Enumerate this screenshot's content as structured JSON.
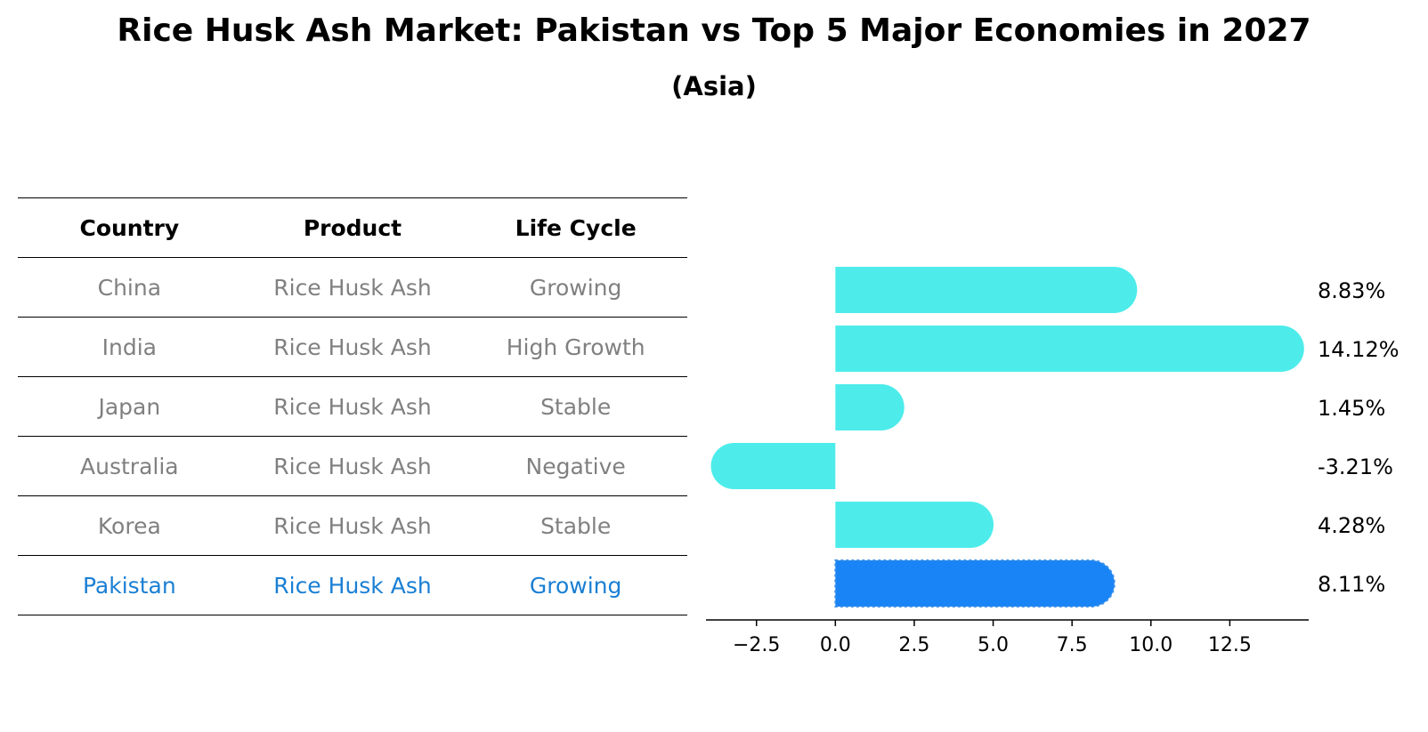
{
  "title": "Rice Husk Ash Market: Pakistan vs Top 5 Major Economies in 2027",
  "subtitle": "(Asia)",
  "table": {
    "headers": [
      "Country",
      "Product",
      "Life Cycle"
    ],
    "rows": [
      [
        "China",
        "Rice Husk Ash",
        "Growing"
      ],
      [
        "India",
        "Rice Husk Ash",
        "High Growth"
      ],
      [
        "Japan",
        "Rice Husk Ash",
        "Stable"
      ],
      [
        "Australia",
        "Rice Husk Ash",
        "Negative"
      ],
      [
        "Korea",
        "Rice Husk Ash",
        "Stable"
      ],
      [
        "Pakistan",
        "Rice Husk Ash",
        "Growing"
      ]
    ],
    "highlight_row": 5
  },
  "chart_data": {
    "type": "bar",
    "orientation": "horizontal",
    "categories": [
      "China",
      "India",
      "Japan",
      "Australia",
      "Korea",
      "Pakistan"
    ],
    "values": [
      8.83,
      14.12,
      1.45,
      -3.21,
      4.28,
      8.11
    ],
    "value_labels": [
      "8.83%",
      "14.12%",
      "1.45%",
      "-3.21%",
      "4.28%",
      "8.11%"
    ],
    "x_ticks": [
      -2.5,
      0.0,
      2.5,
      5.0,
      7.5,
      10.0,
      12.5
    ],
    "x_tick_labels": [
      "−2.5",
      "0.0",
      "2.5",
      "5.0",
      "7.5",
      "10.0",
      "12.5"
    ],
    "xlim": [
      -4.1,
      15.0
    ],
    "colors": {
      "default": "#4deceb",
      "highlight": "#1984f5"
    },
    "highlight_index": 5
  }
}
